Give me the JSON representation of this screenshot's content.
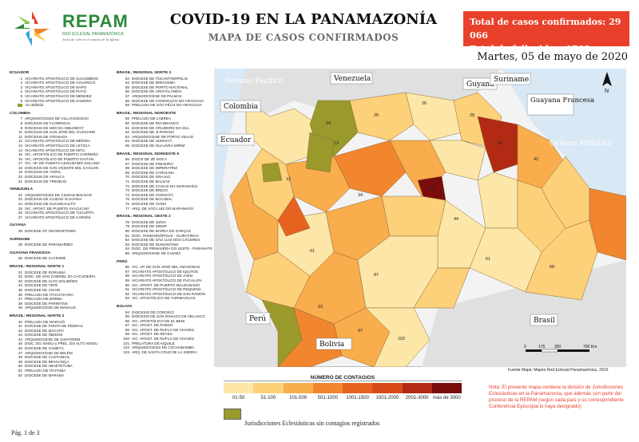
{
  "brand": {
    "name": "REPAM",
    "subtitle": "RED ECLESIAL PANAMAZÓNICA",
    "tagline": "Jesús de vida en el camino de la Iglesia"
  },
  "title": "COVID-19 EN LA PANAMAZONÍA",
  "subtitle": "MAPA DE CASOS CONFIRMADOS",
  "totals": {
    "cases": "Total de casos confirmados: 29 066",
    "deaths": "Total de fallecidos: 1768"
  },
  "date": "Martes, 05 de mayo de 2020",
  "legend_columns": [
    [
      {
        "hdr": "ECUADOR"
      },
      {
        "n": "1",
        "t": "VICARIATO APOSTÓLICO DE SUCUMBÍOS"
      },
      {
        "n": "2",
        "t": "VICARIATO APOSTÓLICO DE AGUARICO"
      },
      {
        "n": "3",
        "t": "VICARIATO APOSTÓLICO DE NAPO"
      },
      {
        "n": "4",
        "t": "VICARIATO APOSTÓLICO DE PUYO"
      },
      {
        "n": "5",
        "t": "VICARIATO APOSTÓLICO DE MÉNDEZ"
      },
      {
        "n": "6",
        "t": "VICARIATO APOSTÓLICO DE ZAMORA"
      },
      {
        "sw": true,
        "t": "no definido"
      },
      {
        "hdr": "COLOMBIA"
      },
      {
        "n": "7",
        "t": "ARQUIDIÓCESIS DE VILLAVICENCIO"
      },
      {
        "n": "8",
        "t": "DIÓCESIS DE FLORENCIA"
      },
      {
        "n": "9",
        "t": "DIÓCESIS DE MOCOA-SIBUNDOY"
      },
      {
        "n": "10",
        "t": "DIÓCESIS DE SAN JOSÉ DEL GUAVIARE"
      },
      {
        "n": "11",
        "t": "DIÓCESIS DE GRANADA"
      },
      {
        "n": "12",
        "t": "VICARIATO APOSTÓLICO DE MÉRIDA"
      },
      {
        "n": "13",
        "t": "VICARIATO APOSTÓLICO DE LETICIA"
      },
      {
        "n": "14",
        "t": "VICARIATO APOSTÓLICO DE MITÚ"
      },
      {
        "n": "15",
        "t": "VIC. APOSTÓLICO DE PUERTO CARREÑO"
      },
      {
        "n": "16",
        "t": "VIC. APOSTÓLICO DE PUERTO GAITÁN"
      },
      {
        "n": "17",
        "t": "VIC. AP. DE PUERTO LEGUÍZAMO-SOLANO"
      },
      {
        "n": "18",
        "t": "DIÓCESIS DE SAN VICENTE DEL CAGUÁN"
      },
      {
        "n": "19",
        "t": "DIÓCESIS DE YOPAL"
      },
      {
        "n": "20",
        "t": "DIÓCESIS DE ARAUCA"
      },
      {
        "n": "21",
        "t": "DIÓCESIS DE TRINIDAD"
      },
      {
        "hdr": "VENEZUELA"
      },
      {
        "n": "22",
        "t": "ARQUIDIÓCESIS DE CIUDAD BOLÍVAR"
      },
      {
        "n": "23",
        "t": "DIÓCESIS DE CIUDAD GUAYANA"
      },
      {
        "n": "24",
        "t": "DIÓCESIS DE GUASDUALITO"
      },
      {
        "n": "25",
        "t": "VIC. APOST. DE PUERTO AYACUCHO"
      },
      {
        "n": "26",
        "t": "VICARIATO APOSTÓLICO DE TUCUPITA"
      },
      {
        "n": "27",
        "t": "VICARIATO APOSTÓLICO DE CARONÍ"
      },
      {
        "hdr": "GUYANA"
      },
      {
        "n": "28",
        "t": "DIOCESE OF GEORGETOWN"
      },
      {
        "hdr": "SURINAME"
      },
      {
        "n": "29",
        "t": "DIOCESE DE PARAMARIBO"
      },
      {
        "hdr": "GUAYANA FRANCESA"
      },
      {
        "n": "30",
        "t": "DIOCESE DE CAYENNE"
      },
      {
        "hdr": "BRASIL: REGIONAL NORTE 1"
      },
      {
        "n": "31",
        "t": "DIOCESE DE RORAIMA"
      },
      {
        "n": "32",
        "t": "DIOC. DE SÃO GABRIEL DA CACHOEIRA"
      },
      {
        "n": "33",
        "t": "DIOCESE DE ALTO SOLIMÕES"
      },
      {
        "n": "34",
        "t": "DIOCESE DE TEFÉ"
      },
      {
        "n": "35",
        "t": "DIOCESE DE COARI"
      },
      {
        "n": "36",
        "t": "PRELAZIA DE ITACOATIARA"
      },
      {
        "n": "37",
        "t": "PRELAZIA DE BORBA"
      },
      {
        "n": "38",
        "t": "DIOCESE DE PARINTINS"
      },
      {
        "n": "39",
        "t": "ARQUIDIOCESE DE MANAUS"
      },
      {
        "hdr": "BRASIL: REGIONAL NORTE 2"
      },
      {
        "n": "40",
        "t": "PRELAZIA DE MARAJÓ"
      },
      {
        "n": "41",
        "t": "DIOCESE DE PONTA DE PEDRAS"
      },
      {
        "n": "42",
        "t": "DIOCESE DE MACAPÁ"
      },
      {
        "n": "43",
        "t": "DIOCESE DE ÓBIDOS"
      },
      {
        "n": "44",
        "t": "ARQUIDIOCESE DE SANTARÉM"
      },
      {
        "n": "45",
        "t": "DIOC. DO XINGU y PREL. DO ALTO XINGU"
      },
      {
        "n": "46",
        "t": "DIOCESE DE CAMETÁ"
      },
      {
        "n": "47",
        "t": "ARQUIDIOCESE DE BELÉM"
      },
      {
        "n": "48",
        "t": "DIOCESE DE CASTANHAL"
      },
      {
        "n": "49",
        "t": "DIOCESE DE BRAGANÇA"
      },
      {
        "n": "50",
        "t": "DIOCESE DE ABAETETUBA"
      },
      {
        "n": "51",
        "t": "PRELAZIA DE ITAITUBA"
      },
      {
        "n": "52",
        "t": "DIOCESE DE MARABÁ"
      }
    ],
    [
      {
        "hdr": "BRASIL: REGIONAL NORTE 3"
      },
      {
        "n": "53",
        "t": "DIOCESE DE TOCANTINÓPOLIS"
      },
      {
        "n": "54",
        "t": "DIOCESE DE MIRACEMA"
      },
      {
        "n": "55",
        "t": "DIOCESE DE PORTO NACIONAL"
      },
      {
        "n": "56",
        "t": "DIOCESE DE CRISTALÂNDIA"
      },
      {
        "n": "57",
        "t": "ARQUIDIOCESE DE PALMAS"
      },
      {
        "n": "58",
        "t": "DIOCESE DE CONCEIÇÃO DO ARAGUAIA"
      },
      {
        "n": "59",
        "t": "PRELAZIA DE SÃO FÉLIX DO ARAGUAIA"
      },
      {
        "hdr": "BRASIL: REGIONAL NOROESTE"
      },
      {
        "n": "59",
        "t": "PRELAZIA DE LÁBREA"
      },
      {
        "n": "60",
        "t": "DIOCESE DE RIO BRANCO"
      },
      {
        "n": "61",
        "t": "DIOCESE DE CRUZEIRO DO SUL"
      },
      {
        "n": "62",
        "t": "DIOCESE DE JI-PARANÁ"
      },
      {
        "n": "63",
        "t": "ARQUIDIOCESE DE PORTO VELHO"
      },
      {
        "n": "64",
        "t": "DIOCESE DE HUMAITÁ"
      },
      {
        "n": "65",
        "t": "DIOCESE DE GUAJARÁ-MIRIM"
      },
      {
        "hdr": "BRASIL: REGIONAL NORDESTE 5"
      },
      {
        "n": "66",
        "t": "DIOCE DE ZÉ DOCA"
      },
      {
        "n": "67",
        "t": "DIOCESE DE PINHEIRO"
      },
      {
        "n": "68",
        "t": "DIOCESE DE IMPERATRIZ"
      },
      {
        "n": "69",
        "t": "DIOCESE DE CAROLINA"
      },
      {
        "n": "70",
        "t": "DIOCESE DE GRAJAÚ"
      },
      {
        "n": "71",
        "t": "DIOCESE DE BALSAS"
      },
      {
        "n": "72",
        "t": "DIOCESE DE CAXIAS DO MARANHÃO"
      },
      {
        "n": "73",
        "t": "DIOCESE DE BREJO"
      },
      {
        "n": "74",
        "t": "DIOCESE DE COROATÁ"
      },
      {
        "n": "75",
        "t": "DIOCESE DE BACABAL"
      },
      {
        "n": "76",
        "t": "DIOCESE DE VIANA"
      },
      {
        "n": "77",
        "t": "ARQ. DE SÃO LUIZ DO MARANHÃO"
      },
      {
        "hdr": "BRASIL: REGIONAL OESTE 2"
      },
      {
        "n": "78",
        "t": "DIOCESE DE JUÍNA"
      },
      {
        "n": "79",
        "t": "DIOCESE DE SINOP"
      },
      {
        "n": "80",
        "t": "DIOCESE DE BARRA DO GARÇAS"
      },
      {
        "n": "81",
        "t": "DIOC. RONDONÓPOLIS - GUIRATINGA"
      },
      {
        "n": "82",
        "t": "DIOCESE DE SÃO LUIZ DOS CÁCERES"
      },
      {
        "n": "83",
        "t": "DIOCESE DE DIAMANTINO"
      },
      {
        "n": "84",
        "t": "DIOC. DE PRIMAVERA DO LESTE - PARANATINGA"
      },
      {
        "n": "85",
        "t": "ARQUIDIOCESE DE CUIABÁ"
      },
      {
        "hdr": "PERÚ"
      },
      {
        "n": "86",
        "t": "VIC. AP. DE SAN JOSÉ DEL AMAZONAS"
      },
      {
        "n": "87",
        "t": "VICARIATO APOSTÓLICO DE IQUITOS"
      },
      {
        "n": "88",
        "t": "VICARIATO APOSTÓLICO DE JAÉN"
      },
      {
        "n": "89",
        "t": "VICARIATO APOSTÓLICO DE PUCALLPA"
      },
      {
        "n": "90",
        "t": "VIC. APOST. DE PUERTO MALDONADO"
      },
      {
        "n": "91",
        "t": "VICARIATO APOSTÓLICO DE REQUENA"
      },
      {
        "n": "92",
        "t": "VICARIATO APOSTÓLICO DE SAN RAMÓN"
      },
      {
        "n": "93",
        "t": "VIC. APOSTÓLICO DE YURIMAGUAS"
      },
      {
        "hdr": "BOLIVIA"
      },
      {
        "n": "94",
        "t": "DIOCESIS DE COROICO"
      },
      {
        "n": "95",
        "t": "DIÓCESIS DE SAN IGNACIO DE VELASCO"
      },
      {
        "n": "96",
        "t": "VIC. APOSTÓLICO DE EL BENI"
      },
      {
        "n": "97",
        "t": "VIC. APOST. DE PANDO"
      },
      {
        "n": "98",
        "t": "VIC. APOST. DE ÑUFLO DE CHAVEZ"
      },
      {
        "n": "99",
        "t": "VIC. APOST. DE REYES"
      },
      {
        "n": "100",
        "t": "VIC. APOST. DE ÑUFLO DE CHAVEZ"
      },
      {
        "n": "101",
        "t": "PRELATURA DE AIQUILE"
      },
      {
        "n": "102",
        "t": "ARQUIDIÓCESIS DE COCHABAMBA"
      },
      {
        "n": "103",
        "t": "ARQ. DE SANTA CRUZ DE LA SIERRA"
      }
    ]
  ],
  "map_labels": {
    "ocean_pacific": "Océano Pacífico",
    "ocean_atlantic": "Océano Atlántico",
    "countries": [
      "Venezuela",
      "Colombia",
      "Ecuador",
      "Guyana",
      "Suriname",
      "Guayana Francesa",
      "Perú",
      "Bolivia",
      "Brasil"
    ],
    "scale": [
      "0",
      "175",
      "350",
      "700 Km"
    ],
    "north": "N"
  },
  "source": "Fuente Mapa: Mapeo Red Eclesial Panamazónica. 2019.",
  "legend": {
    "title": "NÚMERO DE CONTAGIOS",
    "bins": [
      {
        "label": "01-50",
        "color": "#fde7a8"
      },
      {
        "label": "51-100",
        "color": "#fdd07a"
      },
      {
        "label": "101-500",
        "color": "#f9ad4d"
      },
      {
        "label": "501-1000",
        "color": "#f1862f"
      },
      {
        "label": "1001-1500",
        "color": "#e7621f"
      },
      {
        "label": "1501-2000",
        "color": "#d84a18"
      },
      {
        "label": "2001-3000",
        "color": "#b22a14"
      },
      {
        "label": "más de 3000",
        "color": "#7a0c0c"
      }
    ],
    "nodata_label": "Jurisdicciones Eclesiásticas sin contagios registrados",
    "nodata_color": "#9a9a2c"
  },
  "note": "Nota: El presente mapa contiene la división de Jurisdicciones Eclesiásticas en la Panamazonía, que además son parte del proceso de la REPAM (según cada país y su correspondiente Conferencia Episcopal lo haya designado)",
  "page": "Pág. 1 de 3"
}
